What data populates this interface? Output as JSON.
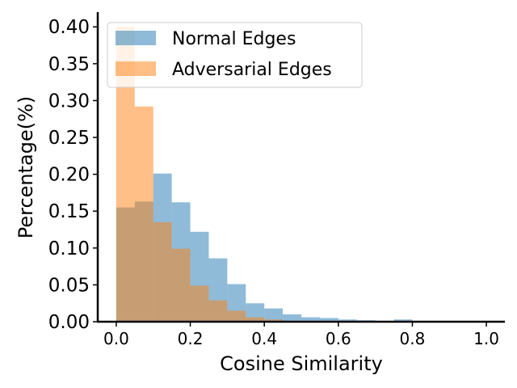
{
  "chart_data": {
    "type": "histogram",
    "title": "",
    "xlabel": "Cosine Similarity",
    "ylabel": "Percentage(%)",
    "xlim": [
      -0.05,
      1.05
    ],
    "ylim": [
      0,
      0.42
    ],
    "xticks": [
      "0.0",
      "0.2",
      "0.4",
      "0.6",
      "0.8",
      "1.0"
    ],
    "xtick_values": [
      0.0,
      0.2,
      0.4,
      0.6,
      0.8,
      1.0
    ],
    "yticks": [
      "0.00",
      "0.05",
      "0.10",
      "0.15",
      "0.20",
      "0.25",
      "0.30",
      "0.35",
      "0.40"
    ],
    "ytick_values": [
      0.0,
      0.05,
      0.1,
      0.15,
      0.2,
      0.25,
      0.3,
      0.35,
      0.4
    ],
    "bin_edges": [
      0.0,
      0.05,
      0.1,
      0.15,
      0.2,
      0.25,
      0.3,
      0.35,
      0.4,
      0.45,
      0.5,
      0.55,
      0.6,
      0.65,
      0.7,
      0.75,
      0.8,
      0.85,
      0.9,
      0.95,
      1.0
    ],
    "series": [
      {
        "name": "Normal Edges",
        "color": "#1f77b4",
        "alpha": 0.5,
        "values": [
          0.155,
          0.163,
          0.201,
          0.162,
          0.122,
          0.086,
          0.051,
          0.025,
          0.018,
          0.01,
          0.006,
          0.005,
          0.003,
          0.002,
          0.001,
          0.003,
          0.001,
          0.001,
          0.001,
          0.0
        ]
      },
      {
        "name": "Adversarial Edges",
        "color": "#ff7f0e",
        "alpha": 0.5,
        "values": [
          0.4,
          0.292,
          0.135,
          0.099,
          0.049,
          0.029,
          0.015,
          0.006,
          0.003,
          0.001,
          0.001,
          0.0,
          0.0,
          0.0,
          0.0,
          0.0,
          0.0,
          0.0,
          0.0,
          0.0
        ]
      }
    ],
    "legend_position": "top-left",
    "grid": false,
    "spines": [
      "left",
      "bottom"
    ]
  }
}
